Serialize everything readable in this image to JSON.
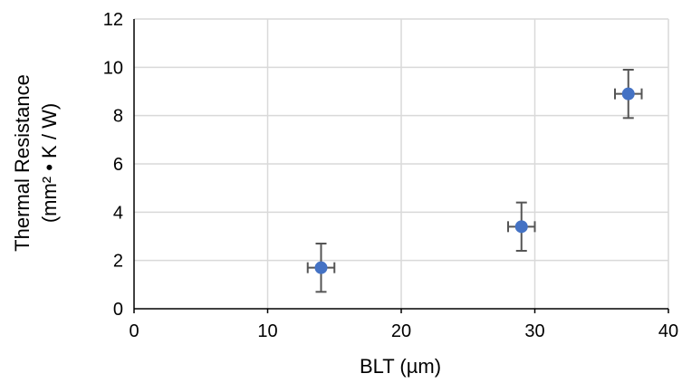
{
  "chart_data": {
    "type": "scatter",
    "title": "",
    "xlabel": "BLT (µm)",
    "ylabel_line1": "Thermal Resistance",
    "ylabel_line2": "(mm² • K / W)",
    "xlim": [
      0,
      40
    ],
    "ylim": [
      0,
      12
    ],
    "x_ticks": [
      0,
      10,
      20,
      30,
      40
    ],
    "y_ticks": [
      0,
      2,
      4,
      6,
      8,
      10,
      12
    ],
    "grid": true,
    "series": [
      {
        "points": [
          {
            "x": 14,
            "y": 1.7,
            "x_err": 1,
            "y_err": 1
          },
          {
            "x": 29,
            "y": 3.4,
            "x_err": 1,
            "y_err": 1
          },
          {
            "x": 37,
            "y": 8.9,
            "x_err": 1,
            "y_err": 1
          }
        ]
      }
    ],
    "colors": {
      "marker": "#4472c4",
      "error_bar": "#555555",
      "grid": "#d9d9d9",
      "axis": "#000000"
    }
  }
}
